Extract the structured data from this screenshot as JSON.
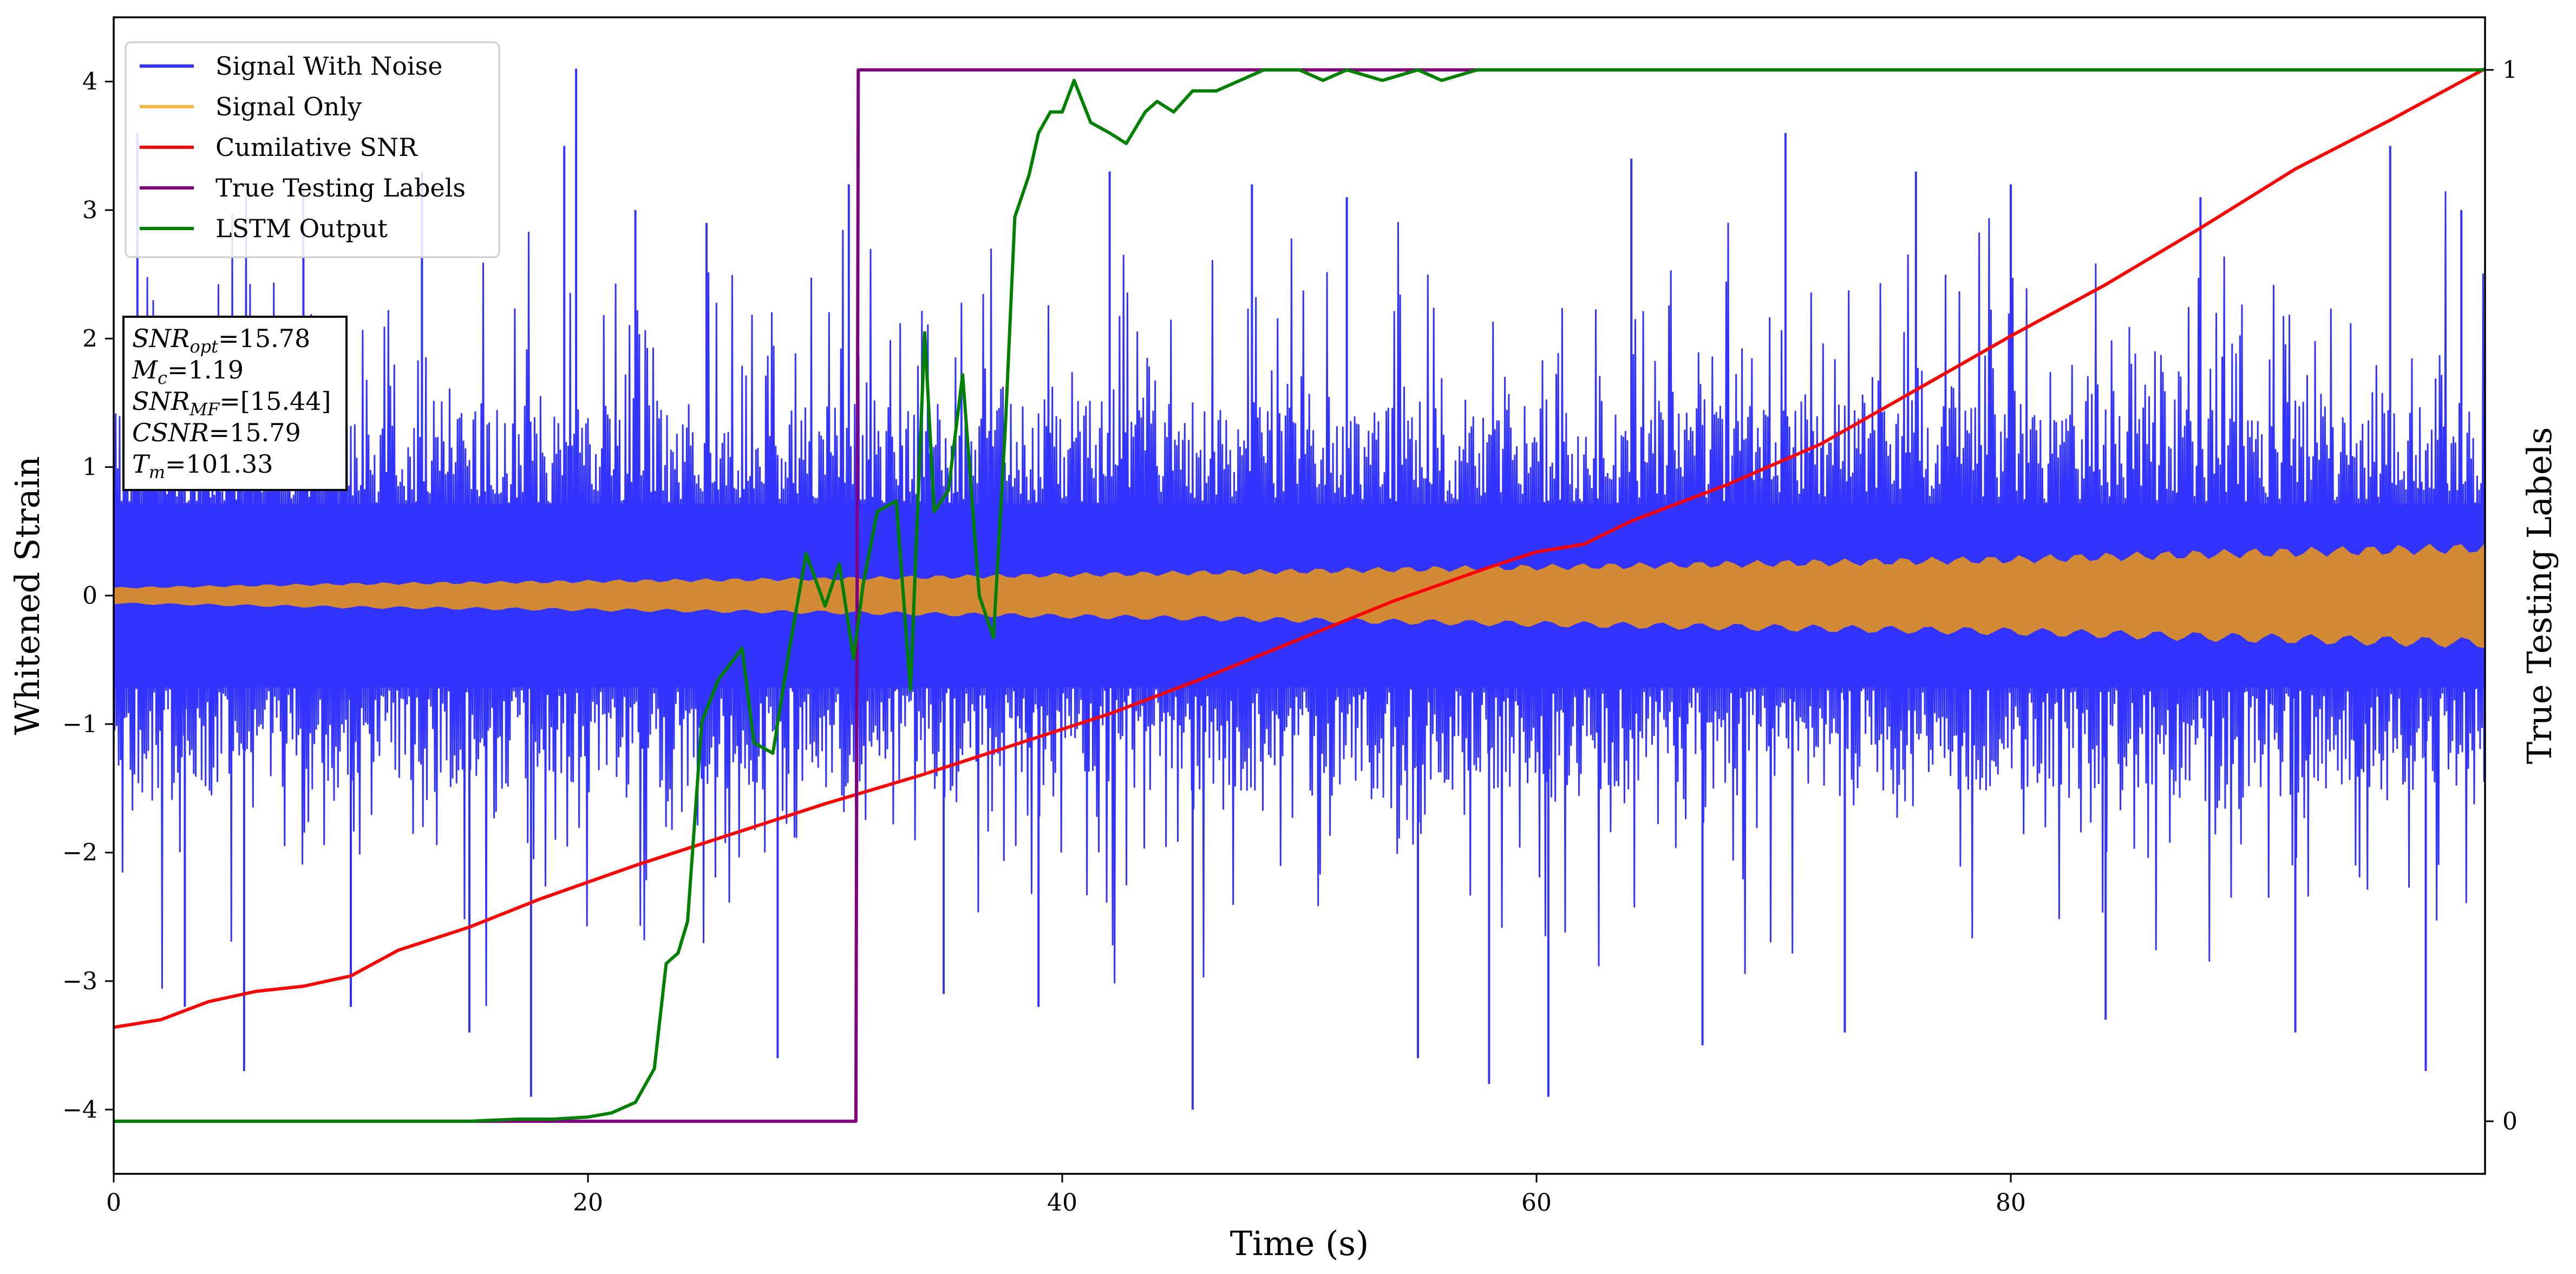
{
  "chart_data": {
    "type": "line",
    "title": "",
    "xlabel": "Time (s)",
    "ylabel": "Whitened Strain",
    "ylabel_right": "True Testing Labels",
    "xlim": [
      0,
      100
    ],
    "ylim": [
      -4.5,
      4.5
    ],
    "ylim_right": [
      -0.05,
      1.05
    ],
    "x_ticks": [
      "0",
      "20",
      "40",
      "60",
      "80"
    ],
    "y_ticks": [
      "−4",
      "−3",
      "−2",
      "−1",
      "0",
      "1",
      "2",
      "3",
      "4"
    ],
    "y_right_ticks": [
      "0",
      "1"
    ],
    "grid": false,
    "legend_position": "upper-left",
    "legend": [
      {
        "name": "Signal With Noise",
        "color": "#3333ff"
      },
      {
        "name": "Signal Only",
        "color": "#f5b642"
      },
      {
        "name": "Cumilative SNR",
        "color": "#ff0000"
      },
      {
        "name": "True Testing Labels",
        "color": "#800080"
      },
      {
        "name": "LSTM Output",
        "color": "#008000"
      }
    ],
    "annotation": {
      "lines": [
        {
          "base": "SNR",
          "sub": "opt",
          "value": "=15.78"
        },
        {
          "base": "M",
          "sub": "c",
          "value": "=1.19"
        },
        {
          "base": "SNR",
          "sub": "MF",
          "value": "=[15.44]"
        },
        {
          "base": "CSNR",
          "sub": "",
          "value": "=15.79"
        },
        {
          "base": "T",
          "sub": "m",
          "value": "=101.33"
        }
      ]
    },
    "series": [
      {
        "name": "Signal With Noise",
        "axis": "left",
        "render": "noise-band",
        "color": "#3333ff",
        "typical_amplitude": 1.3,
        "peak_values": [
          {
            "x": 1,
            "y": 3.6
          },
          {
            "x": 3,
            "y": -3.2
          },
          {
            "x": 5.5,
            "y": -3.7
          },
          {
            "x": 8,
            "y": 3.2
          },
          {
            "x": 10,
            "y": -3.2
          },
          {
            "x": 13,
            "y": 3.3
          },
          {
            "x": 15,
            "y": -3.4
          },
          {
            "x": 17.6,
            "y": -3.9
          },
          {
            "x": 19,
            "y": 3.5
          },
          {
            "x": 19.5,
            "y": 4.1
          },
          {
            "x": 22,
            "y": 3.0
          },
          {
            "x": 25,
            "y": 2.9
          },
          {
            "x": 28,
            "y": -3.6
          },
          {
            "x": 31,
            "y": 3.2
          },
          {
            "x": 35,
            "y": -3.1
          },
          {
            "x": 39,
            "y": -3.2
          },
          {
            "x": 42,
            "y": 3.3
          },
          {
            "x": 45.5,
            "y": -4.0
          },
          {
            "x": 48,
            "y": 3.2
          },
          {
            "x": 52,
            "y": 3.1
          },
          {
            "x": 55,
            "y": -3.6
          },
          {
            "x": 58,
            "y": -3.8
          },
          {
            "x": 60.5,
            "y": -3.9
          },
          {
            "x": 64,
            "y": 3.4
          },
          {
            "x": 67,
            "y": -3.5
          },
          {
            "x": 70.5,
            "y": 3.6
          },
          {
            "x": 73,
            "y": -3.4
          },
          {
            "x": 76,
            "y": 3.3
          },
          {
            "x": 80,
            "y": 3.2
          },
          {
            "x": 84,
            "y": -3.3
          },
          {
            "x": 88,
            "y": 3.1
          },
          {
            "x": 92,
            "y": -3.4
          },
          {
            "x": 96,
            "y": 3.5
          },
          {
            "x": 97.5,
            "y": -3.7
          },
          {
            "x": 99,
            "y": 3.0
          }
        ]
      },
      {
        "name": "Signal Only",
        "axis": "left",
        "render": "envelope",
        "fill": "#d38a35",
        "x": [
          0,
          10,
          20,
          30,
          40,
          50,
          60,
          70,
          80,
          90,
          100
        ],
        "amplitude": [
          0.06,
          0.09,
          0.11,
          0.13,
          0.16,
          0.19,
          0.22,
          0.25,
          0.28,
          0.33,
          0.37
        ]
      },
      {
        "name": "Cumilative SNR",
        "axis": "left",
        "color": "#ff0000",
        "x": [
          0,
          2,
          4,
          6,
          8,
          10,
          12,
          15,
          18,
          22,
          26,
          30,
          34,
          38,
          42,
          46,
          50,
          54,
          58,
          60,
          62,
          64,
          68,
          72,
          76,
          80,
          84,
          88,
          92,
          96,
          100
        ],
        "values": [
          -3.36,
          -3.3,
          -3.16,
          -3.08,
          -3.04,
          -2.96,
          -2.76,
          -2.58,
          -2.36,
          -2.1,
          -1.86,
          -1.62,
          -1.4,
          -1.16,
          -0.92,
          -0.64,
          -0.34,
          -0.04,
          0.22,
          0.34,
          0.4,
          0.58,
          0.86,
          1.18,
          1.6,
          2.02,
          2.42,
          2.86,
          3.32,
          3.7,
          4.1
        ]
      },
      {
        "name": "True Testing Labels",
        "axis": "right",
        "color": "#800080",
        "x": [
          0,
          31.3,
          31.4,
          32,
          100
        ],
        "values": [
          0,
          0,
          1,
          1,
          1
        ]
      },
      {
        "name": "LSTM Output",
        "axis": "right",
        "color": "#008000",
        "x": [
          0,
          15,
          17,
          18.5,
          20,
          21,
          22,
          22.8,
          23.3,
          23.8,
          24.2,
          24.8,
          25.5,
          26.5,
          27,
          27.8,
          28.5,
          29.2,
          30,
          30.6,
          31.2,
          31.6,
          32.2,
          33,
          33.6,
          34.2,
          34.6,
          35.2,
          35.8,
          36.5,
          37.1,
          37.6,
          38,
          38.6,
          39,
          39.5,
          40,
          40.5,
          41.2,
          42,
          42.7,
          43.5,
          44,
          44.7,
          45.5,
          46.5,
          47.5,
          48.5,
          50,
          51,
          52,
          53.5,
          55,
          56,
          57.5,
          58.5,
          60,
          62,
          64,
          67,
          70,
          75,
          100
        ],
        "values": [
          0,
          0,
          0.002,
          0.002,
          0.004,
          0.008,
          0.018,
          0.05,
          0.15,
          0.16,
          0.19,
          0.38,
          0.42,
          0.45,
          0.36,
          0.35,
          0.45,
          0.54,
          0.49,
          0.53,
          0.44,
          0.51,
          0.58,
          0.59,
          0.41,
          0.75,
          0.58,
          0.6,
          0.71,
          0.5,
          0.46,
          0.66,
          0.86,
          0.9,
          0.94,
          0.96,
          0.96,
          0.99,
          0.95,
          0.94,
          0.93,
          0.96,
          0.97,
          0.96,
          0.98,
          0.98,
          0.99,
          1.0,
          1.0,
          0.99,
          1.0,
          0.99,
          1.0,
          0.99,
          1.0,
          1.0,
          1.0,
          1.0,
          1.0,
          1.0,
          1.0,
          1.0,
          1.0
        ]
      }
    ]
  }
}
